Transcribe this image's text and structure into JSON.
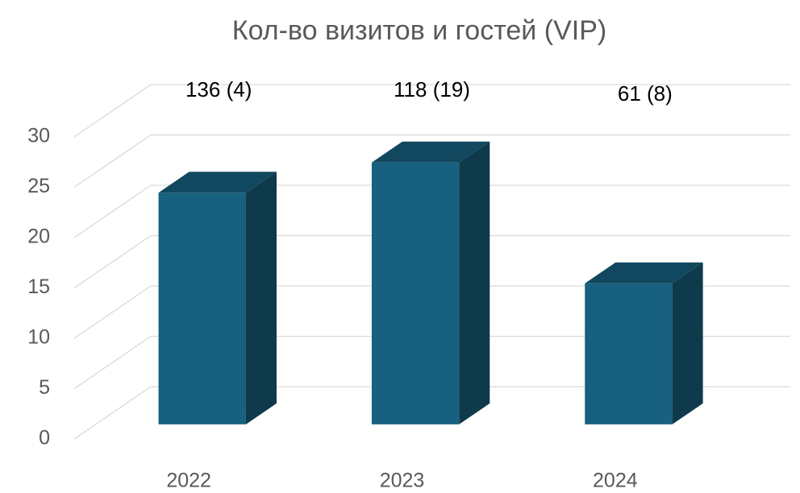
{
  "chart_data": {
    "type": "bar3d",
    "title": "Кол-во визитов и гостей (VIP)",
    "categories": [
      "2022",
      "2023",
      "2024"
    ],
    "values": [
      23,
      26,
      14
    ],
    "annotations": [
      "136 (4)",
      "118 (19)",
      "61 (8)"
    ],
    "color": "#17607f",
    "ylim": [
      0,
      30
    ],
    "yticks": [
      0,
      5,
      10,
      15,
      20,
      25,
      30
    ],
    "grid": true
  }
}
